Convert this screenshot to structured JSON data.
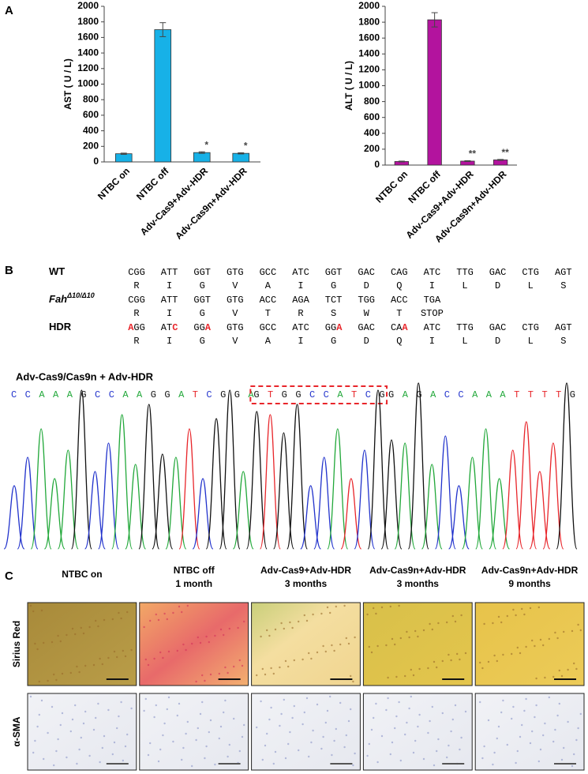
{
  "panel_labels": [
    "A",
    "B",
    "C"
  ],
  "chart_data": [
    {
      "type": "bar",
      "ylabel": "AST ( U / L)",
      "categories": [
        "NTBC on",
        "NTBC off",
        "Adv-Cas9+Adv-HDR",
        "Adv-Cas9n+Adv-HDR"
      ],
      "values": [
        105,
        1700,
        120,
        110
      ],
      "errors": [
        8,
        90,
        10,
        8
      ],
      "annotations": [
        null,
        null,
        "*",
        "*"
      ],
      "color": "#17b1e7",
      "ylim": [
        0,
        2000
      ],
      "yticks": [
        0,
        200,
        400,
        600,
        800,
        1000,
        1200,
        1400,
        1600,
        1800,
        2000
      ]
    },
    {
      "type": "bar",
      "ylabel": "ALT ( U / L)",
      "categories": [
        "NTBC on",
        "NTBC off",
        "Adv-Cas9+Adv-HDR",
        "Adv-Cas9n+Adv-HDR"
      ],
      "values": [
        45,
        1830,
        50,
        65
      ],
      "errors": [
        5,
        90,
        5,
        6
      ],
      "annotations": [
        null,
        null,
        "**",
        "**"
      ],
      "color": "#b3139e",
      "ylim": [
        0,
        2000
      ],
      "yticks": [
        0,
        200,
        400,
        600,
        800,
        1000,
        1200,
        1400,
        1600,
        1800,
        2000
      ]
    }
  ],
  "sequence": {
    "rows": [
      {
        "label": "WT",
        "codons": [
          "CGG",
          "ATT",
          "GGT",
          "GTG",
          "GCC",
          "ATC",
          "GGT",
          "GAC",
          "CAG",
          "ATC",
          "TTG",
          "GAC",
          "CTG",
          "AGT"
        ],
        "amino_acids": [
          "R",
          "I",
          "G",
          "V",
          "A",
          "I",
          "G",
          "D",
          "Q",
          "I",
          "L",
          "D",
          "L",
          "S"
        ]
      },
      {
        "label": "Fah",
        "label_sup": "Δ10/Δ10",
        "codons": [
          "CGG",
          "ATT",
          "GGT",
          "GTG",
          "ACC",
          "AGA",
          "TCT",
          "TGG",
          "ACC",
          "TGA"
        ],
        "amino_acids": [
          "R",
          "I",
          "G",
          "V",
          "T",
          "R",
          "S",
          "W",
          "T",
          "STOP"
        ]
      },
      {
        "label": "HDR",
        "codons": [
          [
            {
              "text": "A",
              "color": "#e8262b"
            },
            {
              "text": "GG"
            }
          ],
          [
            {
              "text": "AT"
            },
            {
              "text": "C",
              "color": "#e8262b"
            }
          ],
          [
            {
              "text": "GG"
            },
            {
              "text": "A",
              "color": "#e8262b"
            }
          ],
          "GTG",
          "GCC",
          "ATC",
          [
            {
              "text": "GG"
            },
            {
              "text": "A",
              "color": "#e8262b"
            }
          ],
          "GAC",
          [
            {
              "text": "CA"
            },
            {
              "text": "A",
              "color": "#e8262b"
            }
          ],
          "ATC",
          "TTG",
          "GAC",
          "CTG",
          "AGT"
        ],
        "amino_acids": [
          "R",
          "I",
          "G",
          "V",
          "A",
          "I",
          "G",
          "D",
          "Q",
          "I",
          "L",
          "D",
          "L",
          "S"
        ]
      }
    ]
  },
  "chromatogram": {
    "title": "Adv-Cas9/Cas9n  +  Adv-HDR",
    "bases_before": "CCAAAGCCAAGGATCGGA",
    "bases_boxed": "GTGGCCATCG",
    "bases_after": "GAGACCAAATTTTG",
    "base_colors": {
      "A": "#22a83a",
      "C": "#2233cc",
      "G": "#111111",
      "T": "#e8262b"
    },
    "box_color": "#e8262b"
  },
  "histology": {
    "columns": [
      [
        "NTBC on"
      ],
      [
        "NTBC off",
        "1 month"
      ],
      [
        "Adv-Cas9+Adv-HDR",
        "3 months"
      ],
      [
        "Adv-Cas9n+Adv-HDR",
        "3 months"
      ],
      [
        "Adv-Cas9n+Adv-HDR",
        "9 months"
      ]
    ],
    "rows": [
      "Sirius Red",
      "α-SMA"
    ]
  }
}
